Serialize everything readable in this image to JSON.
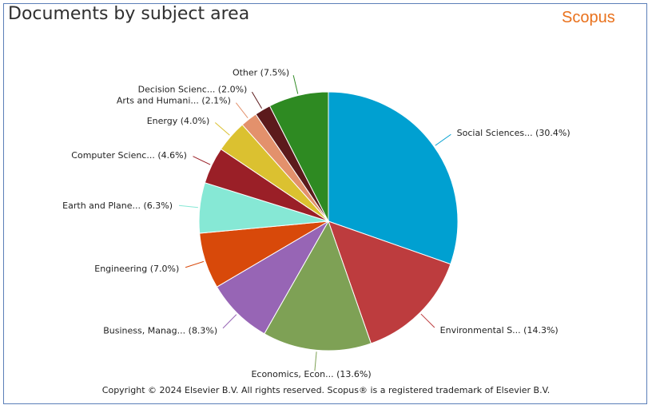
{
  "title": "Documents by subject area",
  "brand": "Scopus",
  "footer": "Copyright © 2024 Elsevier B.V. All rights reserved. Scopus® is a registered trademark of Elsevier B.V.",
  "chart_data": {
    "type": "pie",
    "title": "Documents by subject area",
    "slices": [
      {
        "label": "Social Sciences...",
        "value": 30.4,
        "color": "#00a0d1"
      },
      {
        "label": "Environmental S...",
        "value": 14.3,
        "color": "#bd3c3e"
      },
      {
        "label": "Economics, Econ...",
        "value": 13.6,
        "color": "#7ea155"
      },
      {
        "label": "Business, Manag...",
        "value": 8.3,
        "color": "#9765b5"
      },
      {
        "label": "Engineering",
        "value": 7.0,
        "color": "#d8490a"
      },
      {
        "label": "Earth and Plane...",
        "value": 6.3,
        "color": "#86e8d5"
      },
      {
        "label": "Computer Scienc...",
        "value": 4.6,
        "color": "#9a1f27"
      },
      {
        "label": "Energy",
        "value": 4.0,
        "color": "#dbc130"
      },
      {
        "label": "Arts and Humani...",
        "value": 2.1,
        "color": "#e3916c"
      },
      {
        "label": "Decision Scienc...",
        "value": 2.0,
        "color": "#5c1a1c"
      },
      {
        "label": "Other",
        "value": 7.5,
        "color": "#2e8a22"
      }
    ]
  }
}
